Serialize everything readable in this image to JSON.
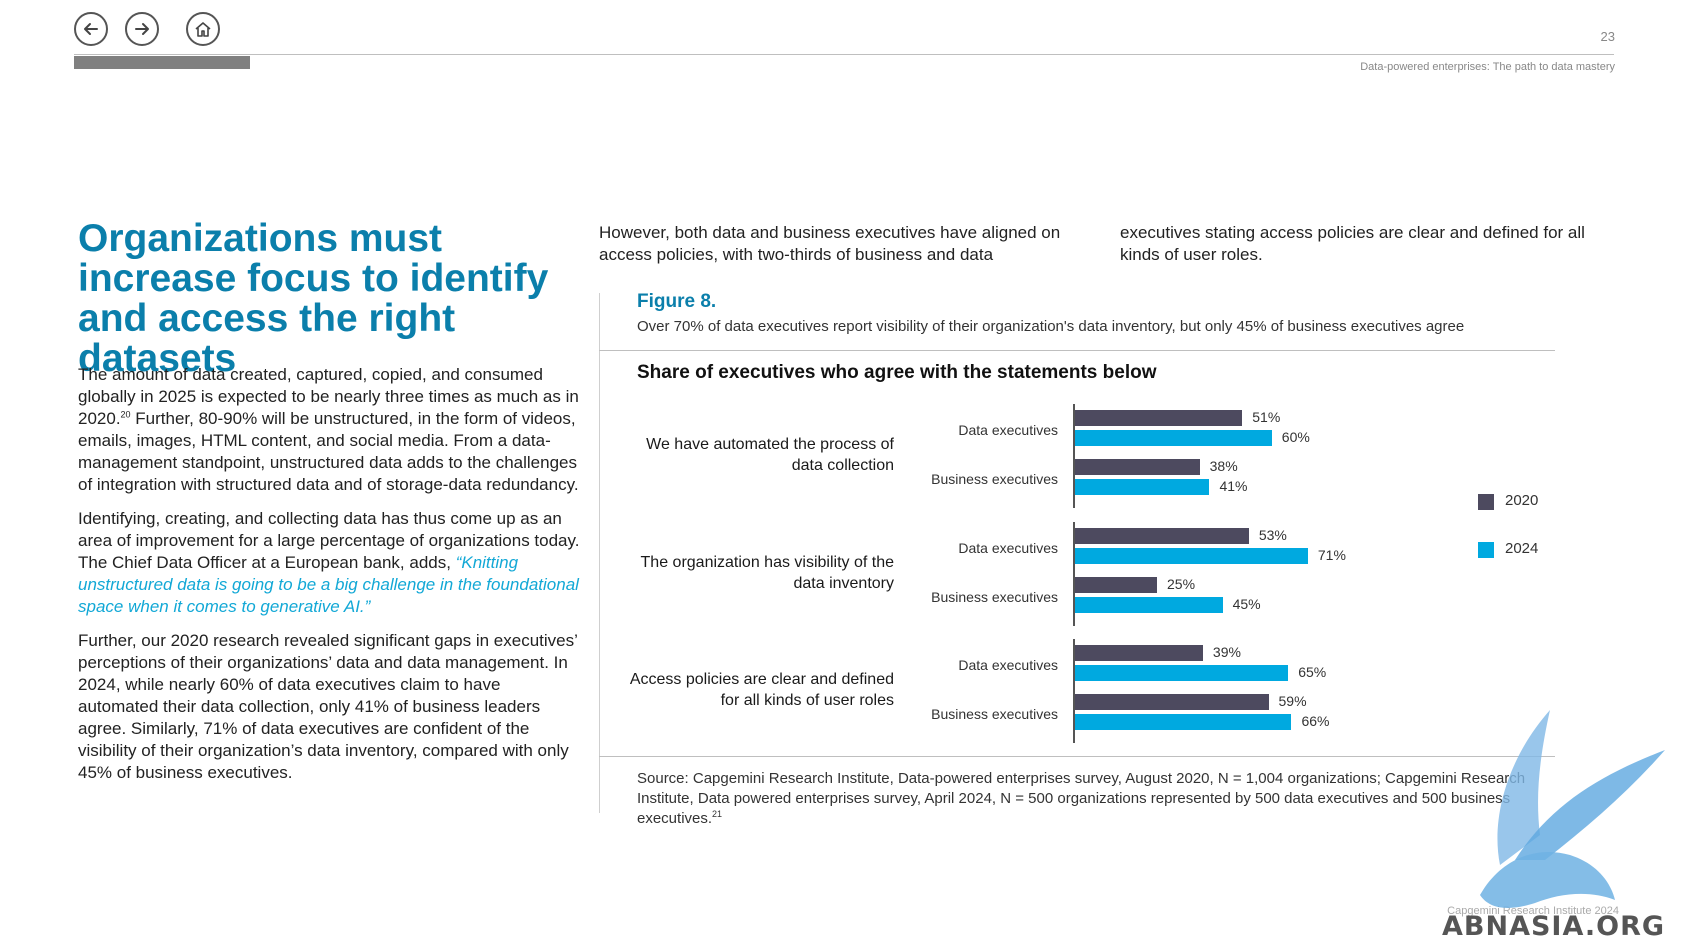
{
  "nav": {
    "back_icon": "arrow-left-icon",
    "forward_icon": "arrow-right-icon",
    "home_icon": "home-icon"
  },
  "header": {
    "page_number": "23",
    "running_title": "Data-powered enterprises: The path to data mastery"
  },
  "title": "Organizations must increase focus to identify and access the right datasets",
  "left_column": {
    "p1": "The amount of data created, captured, copied, and consumed globally in 2025 is expected to be nearly three times as much as in 2020.",
    "p1_ref": "20",
    "p1_rest": " Further, 80-90% will be unstructured, in the form of videos, emails, images, HTML content, and social media. From a data-management standpoint, unstructured data adds to the challenges of integration with structured data and of storage-data redundancy.",
    "p2": "Identifying, creating, and collecting data has thus come up as an area of improvement for a large percentage of organizations today. The Chief Data Officer at a European bank, adds, ",
    "p2_quote": "“Knitting unstructured data is going to be a big challenge in the foundational space when it comes to generative AI.”",
    "p3": "Further, our 2020 research revealed significant gaps in executives’ perceptions of their organizations’ data and data management. In 2024, while nearly 60% of data executives claim to have automated their data collection, only 41% of business leaders agree. Similarly, 71% of data executives are confident of the visibility of their organization’s data inventory, compared with only 45% of business executives."
  },
  "intro": {
    "col_a": "However, both data and business executives have aligned on access policies, with two-thirds of business and data",
    "col_b": "executives stating access policies are clear and defined for all kinds of user roles."
  },
  "figure": {
    "label": "Figure 8.",
    "caption": "Over 70% of data executives report visibility of their organization's data inventory, but only 45% of business executives agree",
    "source": "Source: Capgemini Research Institute, Data-powered enterprises survey, August 2020, N = 1,004 organizations; Capgemini Research Institute, Data powered enterprises survey, April 2024, N = 500 organizations represented by 500 data executives and 500 business executives.",
    "source_ref": "21"
  },
  "chart_data": {
    "type": "bar",
    "orientation": "horizontal",
    "title": "Share of executives who agree with the statements below",
    "legend": [
      "2020",
      "2024"
    ],
    "legend_placement": "right",
    "colors": {
      "2020": "#4d4a5f",
      "2024": "#00a9e0"
    },
    "groups": [
      {
        "statement": "We have automated the process of data collection",
        "rows": [
          {
            "role": "Data executives",
            "v2020": 51,
            "v2024": 60
          },
          {
            "role": "Business executives",
            "v2020": 38,
            "v2024": 41
          }
        ]
      },
      {
        "statement": "The organization has visibility of the data inventory",
        "rows": [
          {
            "role": "Data executives",
            "v2020": 53,
            "v2024": 71
          },
          {
            "role": "Business executives",
            "v2020": 25,
            "v2024": 45
          }
        ]
      },
      {
        "statement": "Access policies are clear and defined for all kinds of user roles",
        "rows": [
          {
            "role": "Data executives",
            "v2020": 39,
            "v2024": 65
          },
          {
            "role": "Business executives",
            "v2020": 59,
            "v2024": 66
          }
        ]
      }
    ]
  },
  "footer": {
    "text": "Capgemini Research Institute 2024"
  },
  "watermark": {
    "text": "ABNASIA.ORG"
  }
}
